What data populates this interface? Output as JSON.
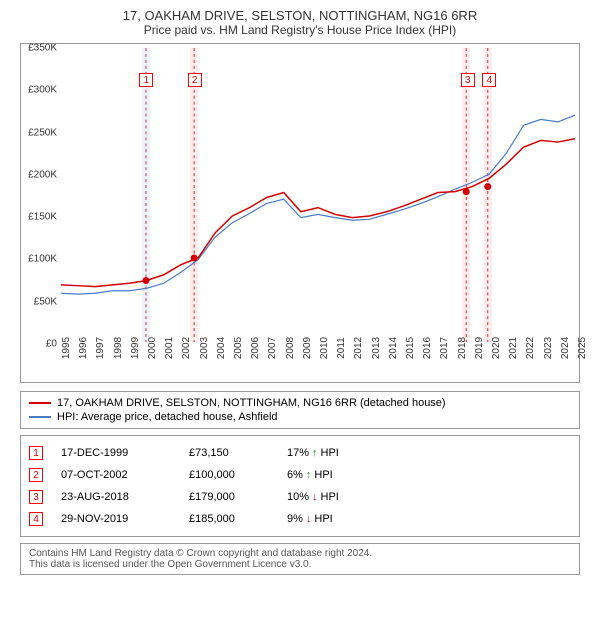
{
  "title": "17, OAKHAM DRIVE, SELSTON, NOTTINGHAM, NG16 6RR",
  "subtitle": "Price paid vs. HM Land Registry's House Price Index (HPI)",
  "chart": {
    "type": "line",
    "background_color": "#ffffff",
    "border_color": "#999999",
    "ylim": [
      0,
      350000
    ],
    "ytick_step": 50000,
    "y_labels": [
      "£0",
      "£50K",
      "£100K",
      "£150K",
      "£200K",
      "£250K",
      "£300K",
      "£350K"
    ],
    "xlim": [
      1995,
      2025
    ],
    "x_labels": [
      "1995",
      "1996",
      "1997",
      "1998",
      "1999",
      "2000",
      "2001",
      "2002",
      "2003",
      "2004",
      "2005",
      "2006",
      "2007",
      "2008",
      "2009",
      "2010",
      "2011",
      "2012",
      "2013",
      "2014",
      "2015",
      "2016",
      "2017",
      "2018",
      "2019",
      "2020",
      "2021",
      "2022",
      "2023",
      "2024",
      "2025"
    ],
    "series": [
      {
        "name": "property",
        "label": "17, OAKHAM DRIVE, SELSTON, NOTTINGHAM, NG16 6RR (detached house)",
        "color": "#d40000",
        "line_width": 1.5,
        "points": {
          "x": [
            1995,
            1996,
            1997,
            1998,
            1999,
            2000,
            2001,
            2002,
            2003,
            2004,
            2005,
            2006,
            2007,
            2008,
            2009,
            2010,
            2011,
            2012,
            2013,
            2014,
            2015,
            2016,
            2017,
            2018,
            2019,
            2020,
            2021,
            2022,
            2023,
            2024,
            2025
          ],
          "y": [
            68000,
            67000,
            66000,
            68000,
            70000,
            73150,
            80000,
            92000,
            100000,
            130000,
            150000,
            160000,
            172000,
            178000,
            155000,
            160000,
            152000,
            148000,
            150000,
            155000,
            162000,
            170000,
            178000,
            179000,
            185000,
            195000,
            212000,
            232000,
            240000,
            238000,
            242000
          ]
        }
      },
      {
        "name": "hpi",
        "label": "HPI: Average price, detached house, Ashfield",
        "color": "#4a7bc8",
        "line_width": 1.2,
        "points": {
          "x": [
            1995,
            1996,
            1997,
            1998,
            1999,
            2000,
            2001,
            2002,
            2003,
            2004,
            2005,
            2006,
            2007,
            2008,
            2009,
            2010,
            2011,
            2012,
            2013,
            2014,
            2015,
            2016,
            2017,
            2018,
            2019,
            2020,
            2021,
            2022,
            2023,
            2024,
            2025
          ],
          "y": [
            58000,
            57000,
            58000,
            61000,
            61000,
            64000,
            70000,
            83000,
            98000,
            125000,
            142000,
            153000,
            165000,
            170000,
            148000,
            152000,
            148000,
            145000,
            146000,
            152000,
            158000,
            165000,
            173000,
            182000,
            190000,
            200000,
            225000,
            258000,
            265000,
            262000,
            270000
          ]
        }
      }
    ],
    "markers": [
      {
        "n": "1",
        "year": 1999.96,
        "price": 73150,
        "color": "#d40000"
      },
      {
        "n": "2",
        "year": 2002.77,
        "price": 100000,
        "color": "#d40000"
      },
      {
        "n": "3",
        "year": 2018.65,
        "price": 179000,
        "color": "#d40000"
      },
      {
        "n": "4",
        "year": 2019.91,
        "price": 185000,
        "color": "#d40000"
      }
    ],
    "annot_top_y": 312000,
    "band_zones": [
      {
        "year": 1999.96,
        "color": "#eaf2fd"
      },
      {
        "year": 2002.77,
        "color": "#fdecec"
      },
      {
        "year": 2018.65,
        "color": "#fdecec"
      },
      {
        "year": 2019.91,
        "color": "#fdecec"
      }
    ],
    "dashed_color": "#d40000",
    "marker_radius": 3.5
  },
  "legend": {
    "rows": [
      {
        "color": "#d40000",
        "label": "17, OAKHAM DRIVE, SELSTON, NOTTINGHAM, NG16 6RR (detached house)"
      },
      {
        "color": "#4a7bc8",
        "label": "HPI: Average price, detached house, Ashfield"
      }
    ]
  },
  "events": [
    {
      "n": "1",
      "date": "17-DEC-1999",
      "price": "£73,150",
      "pct": "17%",
      "arrow": "↑",
      "arrow_color": "#1a9c1a",
      "hpi": "HPI"
    },
    {
      "n": "2",
      "date": "07-OCT-2002",
      "price": "£100,000",
      "pct": "6%",
      "arrow": "↑",
      "arrow_color": "#1a9c1a",
      "hpi": "HPI"
    },
    {
      "n": "3",
      "date": "23-AUG-2018",
      "price": "£179,000",
      "pct": "10%",
      "arrow": "↓",
      "arrow_color": "#c00000",
      "hpi": "HPI"
    },
    {
      "n": "4",
      "date": "29-NOV-2019",
      "price": "£185,000",
      "pct": "9%",
      "arrow": "↓",
      "arrow_color": "#c00000",
      "hpi": "HPI"
    }
  ],
  "footer": {
    "line1": "Contains HM Land Registry data © Crown copyright and database right 2024.",
    "line2": "This data is licensed under the Open Government Licence v3.0."
  }
}
